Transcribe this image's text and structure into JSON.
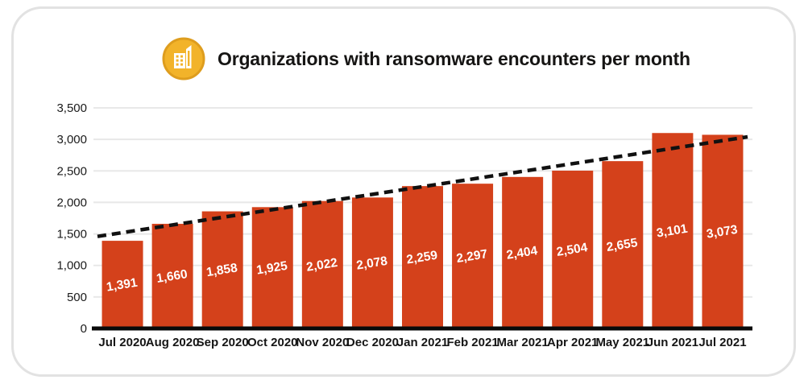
{
  "card": {
    "title": "Organizations with ransomware encounters per month",
    "icon": "building-icon"
  },
  "chart_data": {
    "type": "bar",
    "title": "Organizations with ransomware encounters per month",
    "categories": [
      "Jul 2020",
      "Aug 2020",
      "Sep 2020",
      "Oct 2020",
      "Nov 2020",
      "Dec 2020",
      "Jan 2021",
      "Feb 2021",
      "Mar 2021",
      "Apr 2021",
      "May 2021",
      "Jun 2021",
      "Jul 2021"
    ],
    "values": [
      1391,
      1660,
      1858,
      1925,
      2022,
      2078,
      2259,
      2297,
      2404,
      2504,
      2655,
      3101,
      3073
    ],
    "bar_labels": [
      "1,391",
      "1,660",
      "1,858",
      "1,925",
      "2,022",
      "2,078",
      "2,259",
      "2,297",
      "2,404",
      "2,504",
      "2,655",
      "3,101",
      "3,073"
    ],
    "xlabel": "",
    "ylabel": "",
    "ylim": [
      0,
      3500
    ],
    "y_ticks": [
      0,
      500,
      1000,
      1500,
      2000,
      2500,
      3000,
      3500
    ],
    "y_tick_labels": [
      "0",
      "500",
      "1,000",
      "1,500",
      "2,000",
      "2,500",
      "3,000",
      "3,500"
    ],
    "grid": "horizontal",
    "legend": "none",
    "trendline": {
      "style": "dashed",
      "start_value": 1460,
      "end_value": 3040
    },
    "colors": {
      "bar": "#D4411B",
      "bar_label": "#FFFFFF",
      "grid_line": "#E8E8E8",
      "baseline": "#0A0A0A",
      "trend": "#111111",
      "tick_text": "#1A1A1A",
      "icon_fill": "#F2B32A",
      "icon_ring": "#DE9D1E",
      "icon_glyph": "#FFFFFF",
      "card_border": "#E2E2E2"
    }
  }
}
